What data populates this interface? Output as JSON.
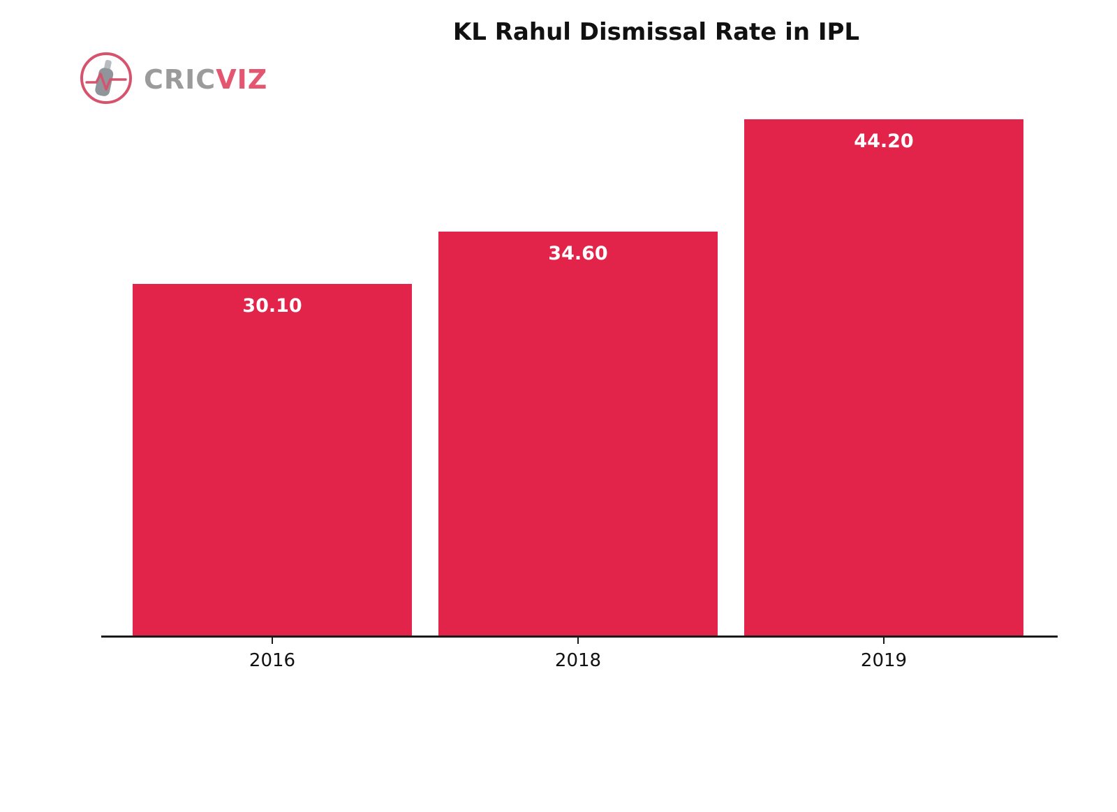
{
  "branding": {
    "logo_text_primary": "CRIC",
    "logo_text_accent": "VIZ"
  },
  "chart_data": {
    "type": "bar",
    "title": "KL Rahul Dismissal Rate in IPL",
    "categories": [
      "2016",
      "2018",
      "2019"
    ],
    "values": [
      30.1,
      34.6,
      44.2
    ],
    "value_labels": [
      "30.10",
      "34.60",
      "44.20"
    ],
    "xlabel": "",
    "ylabel": "",
    "ylim": [
      0,
      44.2
    ],
    "grid": false,
    "legend_position": "none",
    "bar_color": "#E2234A",
    "value_label_color": "#FFFFFF",
    "axis_color": "#1A1A1A"
  }
}
